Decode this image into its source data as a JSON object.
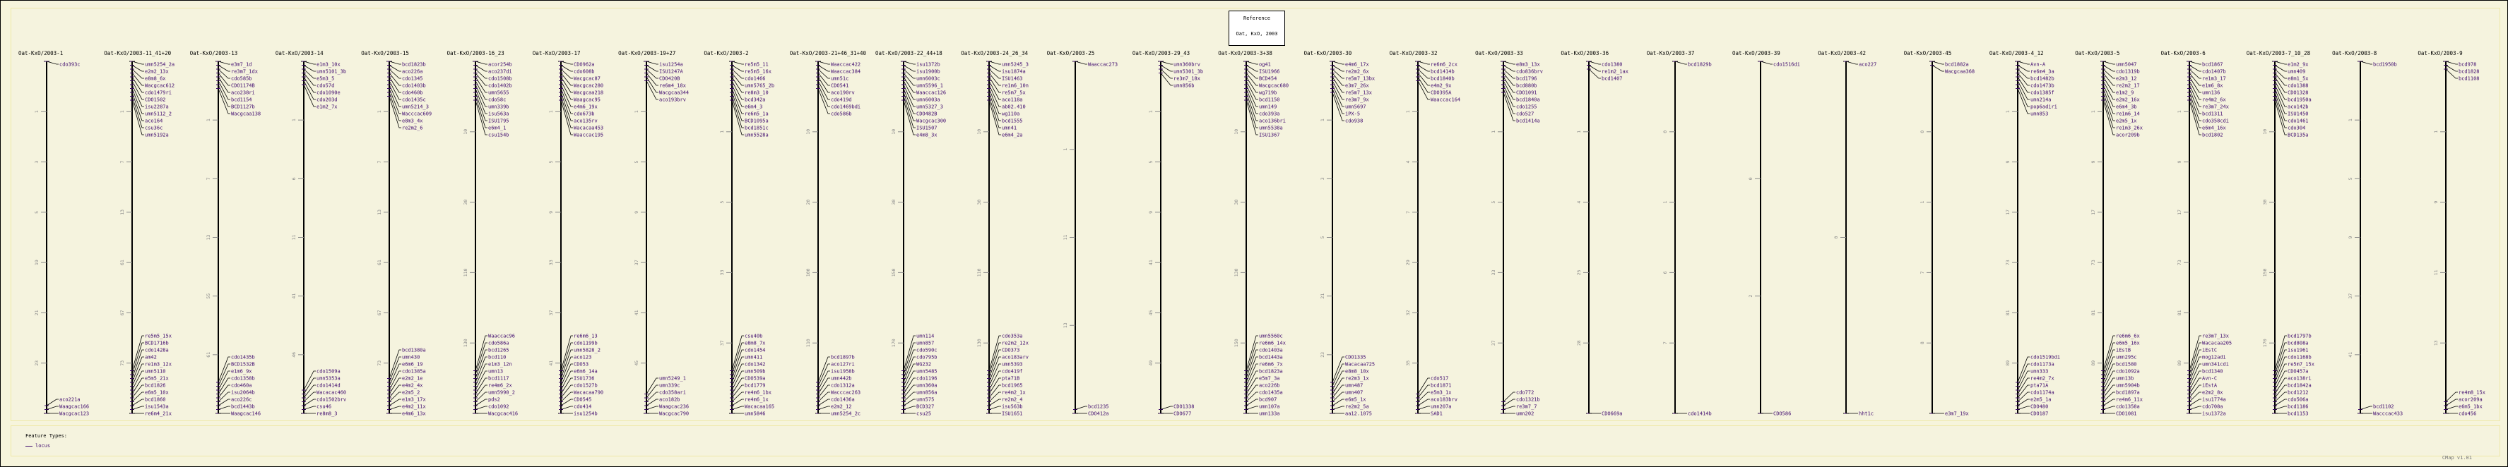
{
  "reference": {
    "title": "Reference",
    "subtitle": "Oat, KxO, 2003"
  },
  "legend": {
    "title": "Feature Types:",
    "items": [
      "locus"
    ]
  },
  "footer": "CMap v1.01",
  "colors": {
    "marker": "#3f0a6e",
    "bar": "#000000",
    "tick": "#8a8a8a",
    "background": "#f5f3de"
  },
  "maps": [
    {
      "name": "Oat-KxO/2003-1",
      "ticks": [
        "1",
        "3",
        "5",
        "19",
        "21",
        "23"
      ],
      "top": [
        "cdo393c"
      ],
      "bottom": [
        "aco221a",
        "Waagcac166",
        "Wacgcac123"
      ]
    },
    {
      "name": "Oat-KxO/2003-11_41+20",
      "ticks": [
        "1",
        "7",
        "13",
        "61",
        "67",
        "73"
      ],
      "top": [
        "umn5254_2a",
        "e2m2_13x",
        "e8m8_6x",
        "Wacgcac612",
        "cdo1479ri",
        "CDO1502",
        "isu2287a",
        "umn5112_2",
        "aco164",
        "csu36c",
        "umn5192a"
      ],
      "bottom": [
        "re5m5_15x",
        "BCD1716b",
        "cdo1428a",
        "am42",
        "re1m3_12x",
        "umn5110",
        "e5m5_21x",
        "bcd1826",
        "e6m5_10x",
        "bcd1860",
        "isu1543a",
        "re6m4_21x"
      ]
    },
    {
      "name": "Oat-KxO/2003-13",
      "ticks": [
        "1",
        "7",
        "13",
        "55",
        "61"
      ],
      "top": [
        "e3m7_1d",
        "re3m7_1dx",
        "cdo585b",
        "CDO1174B",
        "aco238ri",
        "bcd1154",
        "BCD1127b",
        "Wacgcaa138"
      ],
      "bottom": [
        "cdo1435b",
        "BCD1532B",
        "e1m6_9x",
        "cdo1358b",
        "cdo460a",
        "isu2064b",
        "aco226c",
        "bcd1443b",
        "Waagcac146"
      ]
    },
    {
      "name": "Oat-KxO/2003-14",
      "ticks": [
        "1",
        "6",
        "11",
        "41",
        "46"
      ],
      "top": [
        "e1m3_10x",
        "umn5101_3b",
        "e5m3_5",
        "cdo57d",
        "cdo1090e",
        "cdo203d",
        "e1m2_7x"
      ],
      "bottom": [
        "cdo1509a",
        "umn5353a",
        "cdo1414d",
        "Wacacac460",
        "cdo1502brv",
        "csu46",
        "re8m8_3"
      ]
    },
    {
      "name": "Oat-KxO/2003-15",
      "ticks": [
        "1",
        "7",
        "13",
        "61",
        "67",
        "73"
      ],
      "top": [
        "bcd1823b",
        "aco226a",
        "cdo1345",
        "cdo1403b",
        "cdo460b",
        "cdo1435c",
        "umn5214_3",
        "Wacccac609",
        "e8m3_4x",
        "re2m2_6"
      ],
      "bottom": [
        "bcd1380a",
        "umn430",
        "e6m6_19",
        "cdo1385a",
        "e2m2_1e",
        "e4m2_4x",
        "e2m5_2",
        "e1m3_17x",
        "e4m2_11x",
        "e4m6_13x"
      ]
    },
    {
      "name": "Oat-KxO/2003-16_23",
      "ticks": [
        "10",
        "30",
        "110",
        "130"
      ],
      "top": [
        "acor254b",
        "aco237di",
        "cdo1508b",
        "cdo1402b",
        "umn5655",
        "cdo58c",
        "umn339b",
        "isu563a",
        "ISU1795",
        "e6m4_1",
        "csu154b"
      ],
      "bottom": [
        "Waaccac96",
        "cdo586a",
        "bcd1265",
        "bcd110",
        "e1m3_12n",
        "umn13",
        "bcd1117",
        "re4m6_2x",
        "umn5990_2",
        "pds2",
        "cdo1092",
        "Wacgcac416"
      ]
    },
    {
      "name": "Oat-KxO/2003-17",
      "ticks": [
        "1",
        "5",
        "9",
        "33",
        "37",
        "41"
      ],
      "top": [
        "CDO962a",
        "cdo608b",
        "Wacgcac87",
        "Wacgcac280",
        "Wacgcaa218",
        "Waagcac95",
        "e4m6_19x",
        "cdo673b",
        "aco135rv",
        "Wacacaa453",
        "Waaccac195"
      ],
      "bottom": [
        "re6m6_13",
        "cdo1199b",
        "umn5828_2",
        "aco123",
        "CDO53",
        "e6m6_14a",
        "ISU1736",
        "cdo1527b",
        "Wacacaa790",
        "CDO545",
        "cdo414",
        "isu1254b"
      ]
    },
    {
      "name": "Oat-KxO/2003-19+27",
      "ticks": [
        "1",
        "5",
        "9",
        "37",
        "41",
        "45"
      ],
      "top": [
        "isu1254a",
        "ISU1247A",
        "CDO420B",
        "re6m4_18x",
        "Wacgcaa344",
        "aco193brv"
      ],
      "bottom": [
        "umn5249_1",
        "umn339c",
        "cdo358ari",
        "aco182b",
        "Waagcac236",
        "Wacgcac790"
      ]
    },
    {
      "name": "Oat-KxO/2003-2",
      "ticks": [
        "1",
        "5",
        "33",
        "37"
      ],
      "top": [
        "re5m5_11",
        "re5m5_16x",
        "cdo1466",
        "umn5765_2b",
        "re8m3_10",
        "bcd342a",
        "e6m4_3",
        "re6m5_1a",
        "BCD1095a",
        "bcd1851c",
        "umn5528a"
      ],
      "bottom": [
        "csu40b",
        "e8m8_7x",
        "cdo1454",
        "umn411",
        "cdo1342",
        "umn509b",
        "CDO539a",
        "bcd1779",
        "re4m6_1bx",
        "re4m6_1x",
        "Wacacaa165",
        "umn5846"
      ]
    },
    {
      "name": "Oat-KxO/2003-21+46_31+40",
      "ticks": [
        "10",
        "20",
        "100",
        "110"
      ],
      "top": [
        "Waaccac422",
        "Waaccac384",
        "umn51c",
        "CDO541",
        "aco190rv",
        "cdo419d",
        "cdo1469bdi",
        "cdo586b"
      ],
      "bottom": [
        "bcd1897b",
        "aco127ri",
        "isu1958b",
        "umn442b",
        "cdo1312a",
        "Wacccac263",
        "cdo1436a",
        "e2m2_12",
        "umn5254_2c"
      ]
    },
    {
      "name": "Oat-KxO/2003-22_44+18",
      "ticks": [
        "10",
        "30",
        "150",
        "170"
      ],
      "top": [
        "isu1372b",
        "isu1900b",
        "umn6003c",
        "umn5596_1",
        "Waaccac126",
        "umn6003a",
        "umn5327_3",
        "CDO482B",
        "Wacgcac300",
        "ISU1507",
        "e4m8_3x"
      ],
      "bottom": [
        "umn114",
        "umn857",
        "cdo590c",
        "cdo795b",
        "WG232",
        "umn5485",
        "cdo1196",
        "umn360a",
        "umn856a",
        "umn575",
        "BCD327",
        "csu25"
      ]
    },
    {
      "name": "Oat-KxO/2003-24_26_34",
      "ticks": [
        "10",
        "30",
        "110",
        "130"
      ],
      "top": [
        "umn5245_3",
        "isu1874a",
        "ISU1463",
        "re1m6_10n",
        "re5m7_5x",
        "aco118a",
        "ab02.410",
        "wg110a",
        "bcd1555",
        "umn41",
        "e6m4_2a"
      ],
      "bottom": [
        "cdo353a",
        "re2m2_12x",
        "CDO373",
        "aco183arv",
        "umn5393",
        "cdo419f",
        "pta71B",
        "bcd1965",
        "re4m2_1x",
        "re2m2_4",
        "isu563b",
        "ISU1651"
      ]
    },
    {
      "name": "Oat-KxO/2003-25",
      "ticks": [
        "1",
        "11",
        "13"
      ],
      "top": [
        "Waaccac273"
      ],
      "bottom": [
        "bcd1235",
        "CDO412a"
      ]
    },
    {
      "name": "Oat-KxO/2003-29_43",
      "ticks": [
        "1",
        "5",
        "9",
        "41",
        "45",
        "49"
      ],
      "top": [
        "umn360brv",
        "umn5301_3b",
        "re3m7_18x",
        "umn856b"
      ],
      "bottom": [
        "CDO1338",
        "CDO677"
      ]
    },
    {
      "name": "Oat-KxO/2003-3+38",
      "ticks": [
        "10",
        "30",
        "130",
        "150"
      ],
      "top": [
        "og41",
        "ISU1966",
        "BCD454",
        "Wacgcac680",
        "wg719b",
        "bcd1150",
        "umn149",
        "cdo393a",
        "aco136bri",
        "umn5538a",
        "ISU1367"
      ],
      "bottom": [
        "umn5560c",
        "re6m6_14x",
        "cdo1403a",
        "bcd1443a",
        "re6m6_7x",
        "bcd1823a",
        "e5m7_3a",
        "aco226b",
        "cdo1435a",
        "bcd907",
        "umn107a",
        "umn133a"
      ]
    },
    {
      "name": "Oat-KxO/2003-30",
      "ticks": [
        "1",
        "3",
        "5",
        "21",
        "23"
      ],
      "top": [
        "e4m6_17x",
        "re2m2_6x",
        "re5m7_13bx",
        "e3m7_26x",
        "re5m7_13x",
        "re3m7_9x",
        "umn5697",
        "iPX-5",
        "cdo938"
      ],
      "bottom": [
        "CDO1335",
        "Wacacaa725",
        "e8m8_10x",
        "re2m3_1x",
        "umn487",
        "umn407",
        "e6m5_1x",
        "re2m2_5a",
        "aa12.1075"
      ]
    },
    {
      "name": "Oat-KxO/2003-32",
      "ticks": [
        "1",
        "4",
        "7",
        "29",
        "32",
        "35"
      ],
      "top": [
        "re6m6_2cx",
        "bcd1414b",
        "bcd1840b",
        "e4m2_9x",
        "CDO395A",
        "Waaccac164"
      ],
      "bottom": [
        "cdo517",
        "bcd1871",
        "e5m3_1x",
        "aco183brv",
        "umn207a",
        "SAD1"
      ]
    },
    {
      "name": "Oat-KxO/2003-33",
      "ticks": [
        "1",
        "5",
        "33",
        "37"
      ],
      "top": [
        "e8m3_13x",
        "cdo836brv",
        "bcd1796",
        "bcd880b",
        "CDO1091",
        "bcd1840a",
        "cdo1255",
        "cdo527",
        "bcd1414a"
      ],
      "bottom": [
        "cdo772",
        "cdo1321b",
        "re3m7_7",
        "umn202"
      ]
    },
    {
      "name": "Oat-KxO/2003-36",
      "ticks": [
        "1",
        "4",
        "25",
        "28"
      ],
      "top": [
        "cdo1380",
        "re1m2_1ax",
        "bcd1407"
      ],
      "bottom": [
        "CDO669a"
      ]
    },
    {
      "name": "Oat-KxO/2003-37",
      "ticks": [
        "0",
        "1",
        "6",
        "7"
      ],
      "top": [
        "bcd1829b"
      ],
      "bottom": [
        "cdo1414b"
      ]
    },
    {
      "name": "Oat-KxO/2003-39",
      "ticks": [
        "0",
        "2"
      ],
      "top": [
        "cdo1516di"
      ],
      "bottom": [
        "CDO586"
      ]
    },
    {
      "name": "Oat-KxO/2003-42",
      "ticks": [
        "0"
      ],
      "top": [
        "aco227"
      ],
      "bottom": [
        "hht1c"
      ]
    },
    {
      "name": "Oat-KxO/2003-45",
      "ticks": [
        "0",
        "1",
        "7",
        "8"
      ],
      "top": [
        "bcd1882a",
        "Wacgcaa368"
      ],
      "bottom": [
        "e3m7_19x"
      ]
    },
    {
      "name": "Oat-KxO/2003-4_12",
      "ticks": [
        "1",
        "9",
        "17",
        "73",
        "81",
        "89"
      ],
      "top": [
        "Avn-A",
        "re6m4_3a",
        "bcd1482b",
        "cdo1473b",
        "cdo1385f",
        "umn214a",
        "pop6adiri",
        "umn853"
      ],
      "bottom": [
        "cdo1519bdi",
        "cdo1173a",
        "umn333",
        "re4m2_7x",
        "pta71A",
        "cdo1174a",
        "e2m5_1a",
        "CDO480",
        "CDO187"
      ]
    },
    {
      "name": "Oat-KxO/2003-5",
      "ticks": [
        "1",
        "9",
        "17",
        "73",
        "81",
        "89"
      ],
      "top": [
        "umn5047",
        "cdo1319b",
        "e2m3_12",
        "re2m2_17",
        "e1m2_9",
        "e2m2_16x",
        "e6m4_3b",
        "re1m6_14",
        "e2m5_1x",
        "re1m3_26x",
        "acor209b"
      ],
      "bottom": [
        "re6m6_6x",
        "e6m5_16x",
        "iEstB",
        "umn295c",
        "bcd1580",
        "cdo1092a",
        "umn13b",
        "umn5904b",
        "bcd1897a",
        "re4m6_11x",
        "cdo1358a",
        "CDO1081"
      ]
    },
    {
      "name": "Oat-KxO/2003-6",
      "ticks": [
        "1",
        "9",
        "17",
        "73",
        "81",
        "89"
      ],
      "top": [
        "bcd1867",
        "cdo1407b",
        "re1m3_17",
        "e1m6_8x",
        "umn136",
        "re4m2_6x",
        "re3m7_24x",
        "bcd1311",
        "cdo358cdi",
        "e6m4_16x",
        "bcd1802"
      ],
      "bottom": [
        "re3m7_13x",
        "Wacacaa205",
        "iEstC",
        "mog12adi",
        "umn341cdi",
        "bcd1340",
        "Avn-C",
        "iEstA",
        "e2m2_8x",
        "isu1774a",
        "cdo708a",
        "isu1372a"
      ]
    },
    {
      "name": "Oat-KxO/2003-7_10_28",
      "ticks": [
        "10",
        "30",
        "150",
        "170"
      ],
      "top": [
        "e1m2_9x",
        "umn409",
        "e8m1_5x",
        "cdo1388",
        "CDO1328",
        "bcd1950a",
        "aco142b",
        "ISU1450",
        "cdo1461",
        "cdo304",
        "BCD135a"
      ],
      "bottom": [
        "bcd1797b",
        "bcd808a",
        "isu1961",
        "cdo1168b",
        "re5m7_15x",
        "CDO457a",
        "aco138ri",
        "bcd1842a",
        "bcd1212",
        "cdo506a",
        "bcd1186",
        "bcd1153"
      ]
    },
    {
      "name": "Oat-KxO/2003-8",
      "ticks": [
        "1",
        "5",
        "9",
        "37",
        "41"
      ],
      "top": [
        "bcd1950b"
      ],
      "bottom": [
        "bcd1102",
        "Wacccac433"
      ]
    },
    {
      "name": "Oat-KxO/2003-9",
      "ticks": [
        "1",
        "9",
        "11",
        "13"
      ],
      "top": [
        "bcd978",
        "bcd1828",
        "bcd1108"
      ],
      "bottom": [
        "re4m8_15x",
        "acor209a",
        "e6m5_1bx",
        "cdo456"
      ]
    }
  ]
}
